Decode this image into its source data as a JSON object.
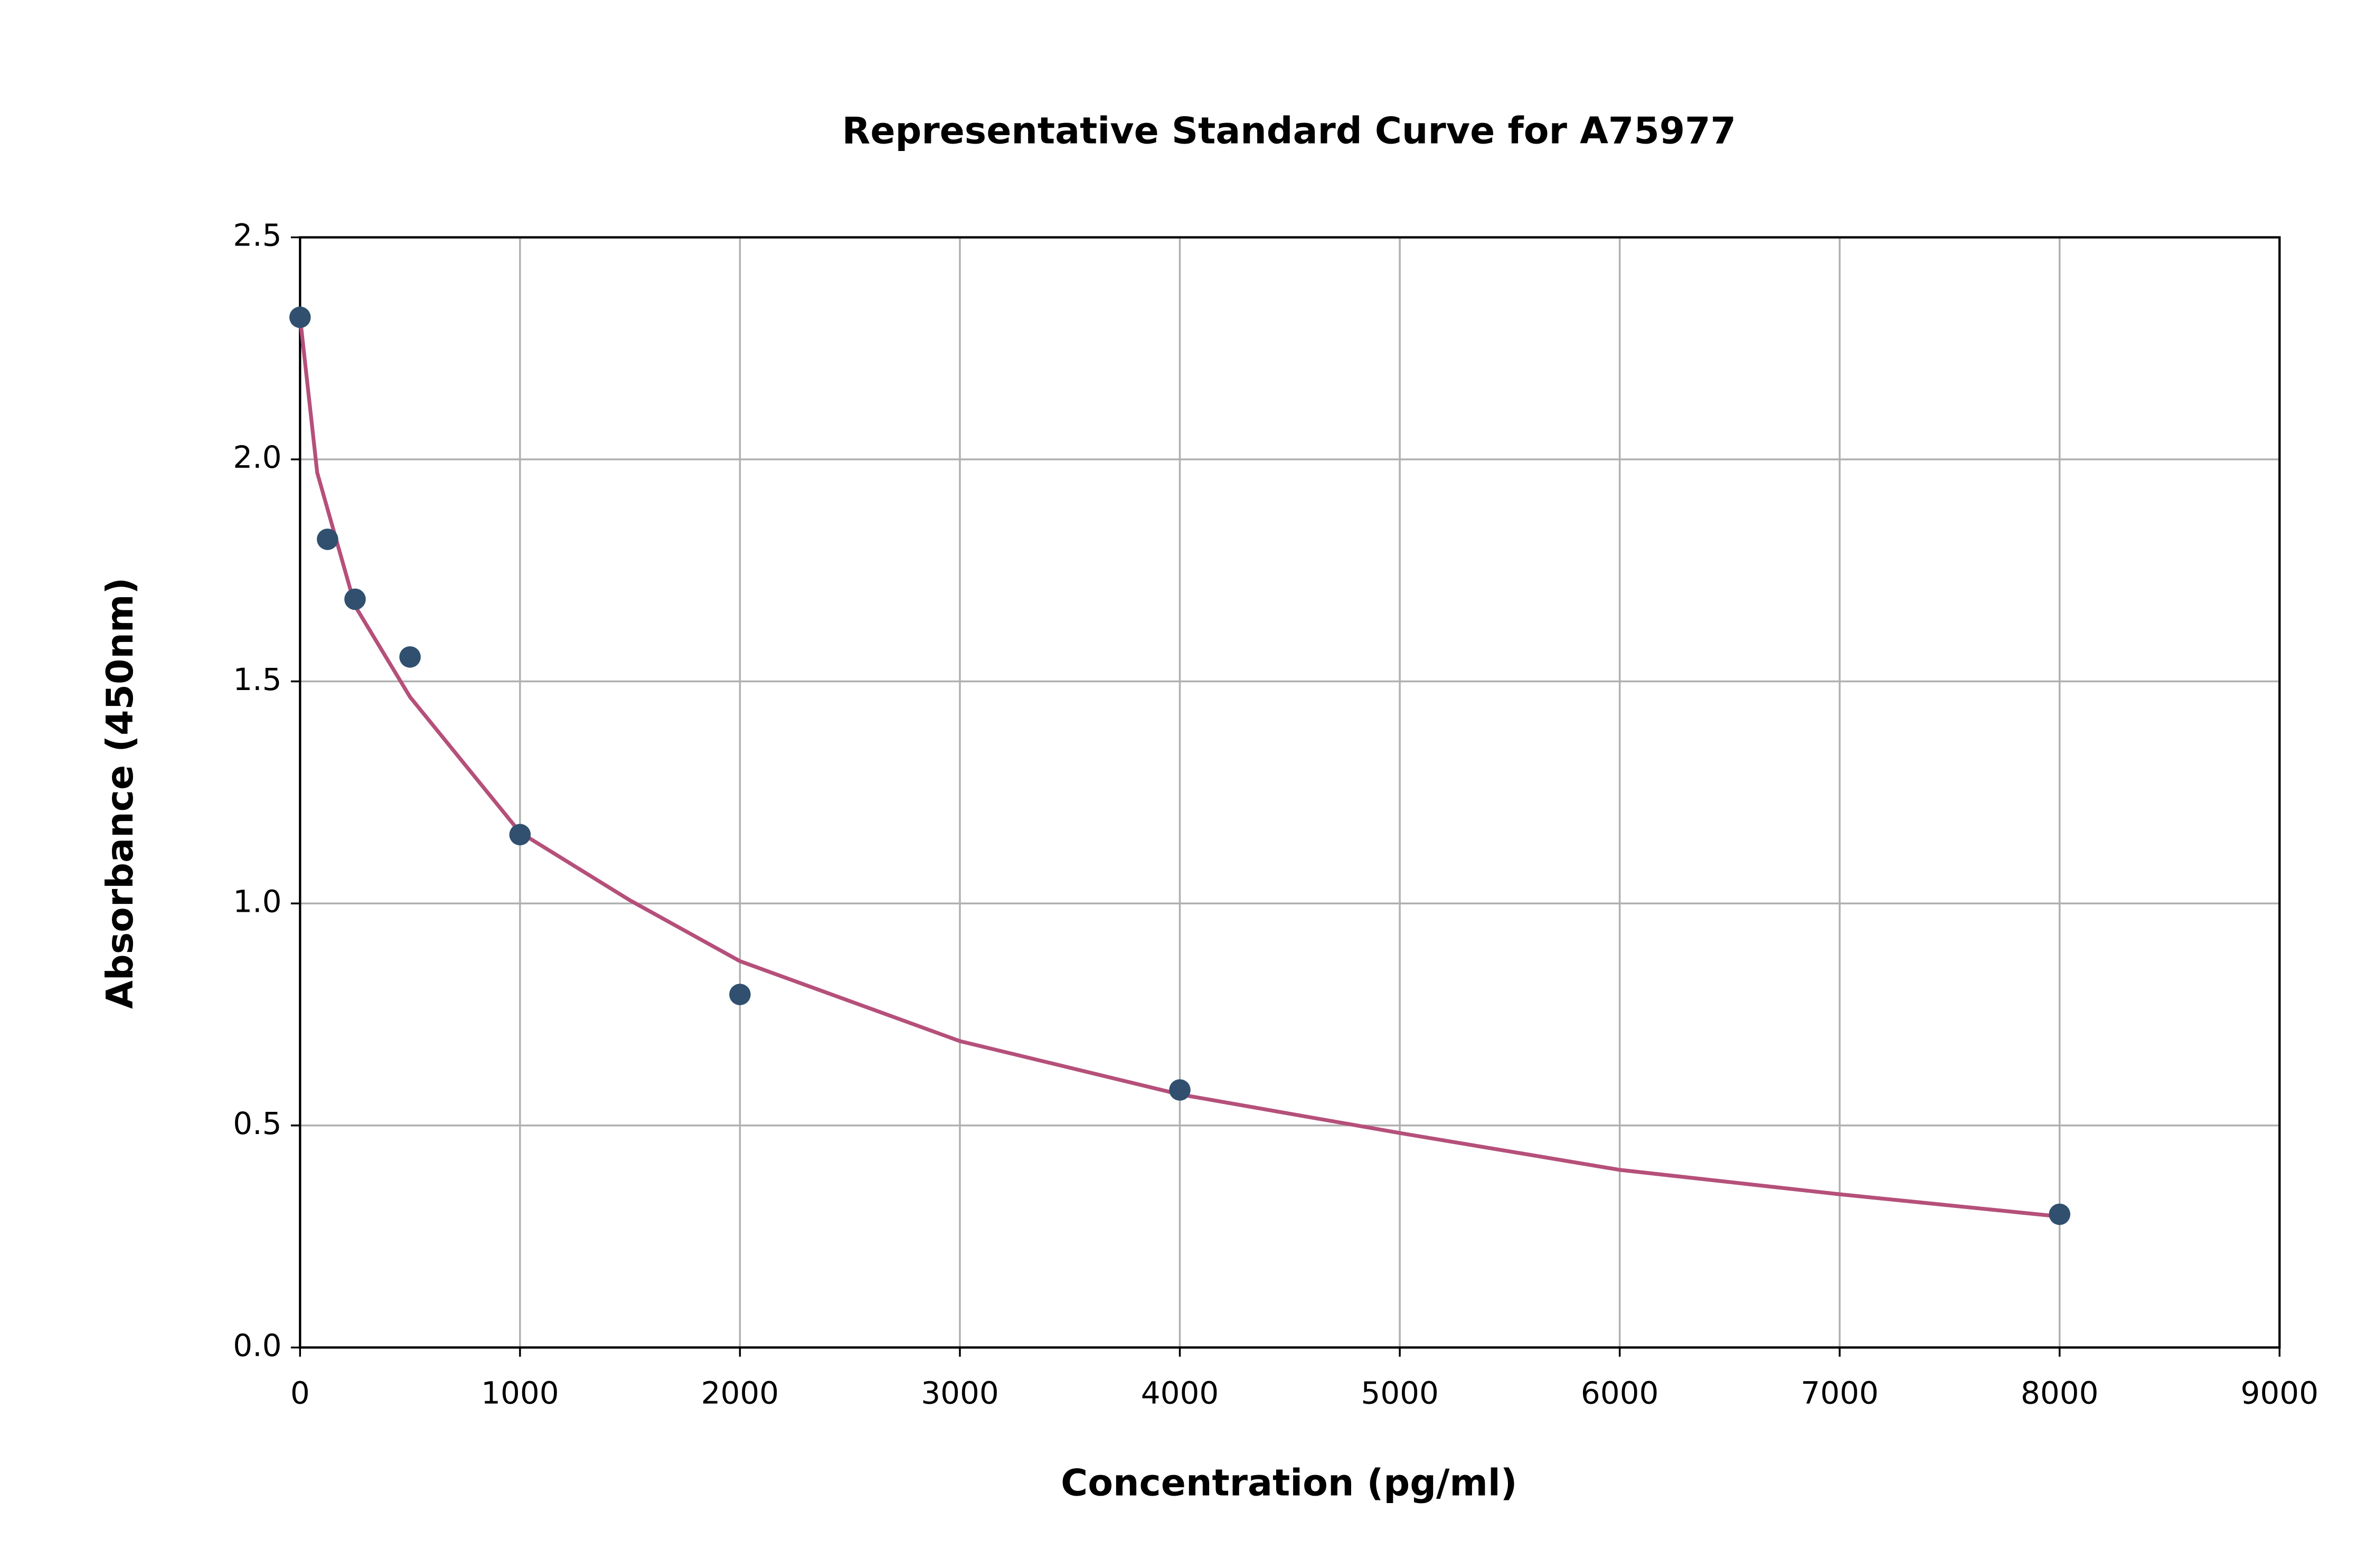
{
  "chart_data": {
    "type": "scatter",
    "title": "Representative Standard Curve for A75977",
    "x_label": "Concentration (pg/ml)",
    "y_label": "Absorbance (450nm)",
    "series": [
      {
        "mode": "markers",
        "color": "#31506f",
        "x": [
          0,
          125,
          250,
          500,
          1000,
          2000,
          4000,
          8000
        ],
        "values": [
          2.32,
          1.82,
          1.685,
          1.555,
          1.155,
          0.795,
          0.58,
          0.3
        ]
      },
      {
        "mode": "line",
        "color": "#b5507a",
        "x": [
          0,
          78,
          250,
          500,
          1000,
          1500,
          2000,
          3000,
          4000,
          5000,
          6000,
          7000,
          8000
        ],
        "values": [
          2.32,
          1.97,
          1.67,
          1.465,
          1.16,
          1.007,
          0.87,
          0.69,
          0.57,
          0.483,
          0.4,
          0.345,
          0.295
        ]
      }
    ],
    "xlim": [
      0,
      9000
    ],
    "xticks": [
      0,
      1000,
      2000,
      3000,
      4000,
      5000,
      6000,
      7000,
      8000,
      9000
    ],
    "ylim": [
      0,
      2.5
    ],
    "yticks": [
      {
        "value": 0,
        "label": "0.0"
      },
      0.5,
      {
        "value": 1,
        "label": "1.0"
      },
      1.5,
      {
        "value": 2,
        "label": "2.0"
      },
      2.5
    ],
    "grid": true
  }
}
